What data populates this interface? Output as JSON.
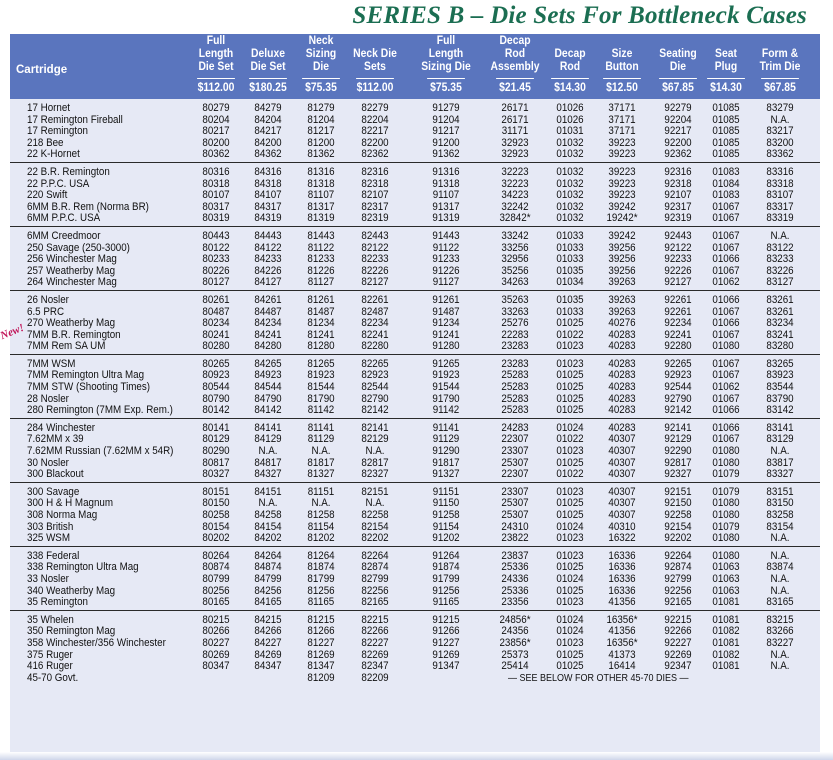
{
  "title": "SERIES B – Die Sets For Bottleneck Cases",
  "new_badge": "New!",
  "headers": [
    {
      "label": "Full Length\nDie Set",
      "price": "$112.00"
    },
    {
      "label": "Deluxe\nDie Set",
      "price": "$180.25"
    },
    {
      "label": "Neck Sizing\nDie",
      "price": "$75.35"
    },
    {
      "label": "Neck Die\nSets",
      "price": "$112.00"
    },
    {
      "label": "Full Length\nSizing Die",
      "price": "$75.35"
    },
    {
      "label": "Decap Rod\nAssembly",
      "price": "$21.45"
    },
    {
      "label": "Decap\nRod",
      "price": "$14.30"
    },
    {
      "label": "Size\nButton",
      "price": "$12.50"
    },
    {
      "label": "Seating\nDie",
      "price": "$67.85"
    },
    {
      "label": "Seat\nPlug",
      "price": "$14.30"
    },
    {
      "label": "Form &\nTrim Die",
      "price": "$67.85"
    }
  ],
  "cartridge_header": "Cartridge",
  "groups": [
    [
      {
        "name": "17 Hornet",
        "v": [
          "80279",
          "84279",
          "81279",
          "82279",
          "91279",
          "26171",
          "01026",
          "37171",
          "92279",
          "01085",
          "83279"
        ]
      },
      {
        "name": "17 Remington Fireball",
        "v": [
          "80204",
          "84204",
          "81204",
          "82204",
          "91204",
          "26171",
          "01026",
          "37171",
          "92204",
          "01085",
          "N.A."
        ]
      },
      {
        "name": "17 Remington",
        "v": [
          "80217",
          "84217",
          "81217",
          "82217",
          "91217",
          "31171",
          "01031",
          "37171",
          "92217",
          "01085",
          "83217"
        ]
      },
      {
        "name": "218 Bee",
        "v": [
          "80200",
          "84200",
          "81200",
          "82200",
          "91200",
          "32923",
          "01032",
          "39223",
          "92200",
          "01085",
          "83200"
        ]
      },
      {
        "name": "22 K-Hornet",
        "v": [
          "80362",
          "84362",
          "81362",
          "82362",
          "91362",
          "32923",
          "01032",
          "39223",
          "92362",
          "01085",
          "83362"
        ]
      }
    ],
    [
      {
        "name": "22 B.R. Remington",
        "v": [
          "80316",
          "84316",
          "81316",
          "82316",
          "91316",
          "32223",
          "01032",
          "39223",
          "92316",
          "01083",
          "83316"
        ]
      },
      {
        "name": "22 P.P.C. USA",
        "v": [
          "80318",
          "84318",
          "81318",
          "82318",
          "91318",
          "32223",
          "01032",
          "39223",
          "92318",
          "01084",
          "83318"
        ]
      },
      {
        "name": "220 Swift",
        "v": [
          "80107",
          "84107",
          "81107",
          "82107",
          "91107",
          "34223",
          "01032",
          "39223",
          "92107",
          "01083",
          "83107"
        ]
      },
      {
        "name": "6MM B.R. Rem (Norma BR)",
        "v": [
          "80317",
          "84317",
          "81317",
          "82317",
          "91317",
          "32242",
          "01032",
          "39242",
          "92317",
          "01067",
          "83317"
        ]
      },
      {
        "name": "6MM P.P.C. USA",
        "v": [
          "80319",
          "84319",
          "81319",
          "82319",
          "91319",
          "32842*",
          "01032",
          "19242*",
          "92319",
          "01067",
          "83319"
        ]
      }
    ],
    [
      {
        "name": "6MM Creedmoor",
        "v": [
          "80443",
          "84443",
          "81443",
          "82443",
          "91443",
          "33242",
          "01033",
          "39242",
          "92443",
          "01067",
          "N.A."
        ]
      },
      {
        "name": "250 Savage (250-3000)",
        "v": [
          "80122",
          "84122",
          "81122",
          "82122",
          "91122",
          "33256",
          "01033",
          "39256",
          "92122",
          "01067",
          "83122"
        ]
      },
      {
        "name": "256 Winchester Mag",
        "v": [
          "80233",
          "84233",
          "81233",
          "82233",
          "91233",
          "32956",
          "01033",
          "39256",
          "92233",
          "01066",
          "83233"
        ]
      },
      {
        "name": "257 Weatherby Mag",
        "v": [
          "80226",
          "84226",
          "81226",
          "82226",
          "91226",
          "35256",
          "01035",
          "39256",
          "92226",
          "01067",
          "83226"
        ]
      },
      {
        "name": "264 Winchester Mag",
        "v": [
          "80127",
          "84127",
          "81127",
          "82127",
          "91127",
          "34263",
          "01034",
          "39263",
          "92127",
          "01062",
          "83127"
        ]
      }
    ],
    [
      {
        "name": "26 Nosler",
        "v": [
          "80261",
          "84261",
          "81261",
          "82261",
          "91261",
          "35263",
          "01035",
          "39263",
          "92261",
          "01066",
          "83261"
        ]
      },
      {
        "name": "6.5 PRC",
        "v": [
          "80487",
          "84487",
          "81487",
          "82487",
          "91487",
          "33263",
          "01033",
          "39263",
          "92261",
          "01067",
          "83261"
        ]
      },
      {
        "name": "270 Weatherby Mag",
        "v": [
          "80234",
          "84234",
          "81234",
          "82234",
          "91234",
          "25276",
          "01025",
          "40276",
          "92234",
          "01066",
          "83234"
        ]
      },
      {
        "name": "7MM B.R. Remington",
        "v": [
          "80241",
          "84241",
          "81241",
          "82241",
          "91241",
          "22283",
          "01022",
          "40283",
          "92241",
          "01067",
          "83241"
        ]
      },
      {
        "name": "7MM Rem SA UM",
        "v": [
          "80280",
          "84280",
          "81280",
          "82280",
          "91280",
          "23283",
          "01023",
          "40283",
          "92280",
          "01080",
          "83280"
        ]
      }
    ],
    [
      {
        "name": "7MM WSM",
        "v": [
          "80265",
          "84265",
          "81265",
          "82265",
          "91265",
          "23283",
          "01023",
          "40283",
          "92265",
          "01067",
          "83265"
        ]
      },
      {
        "name": "7MM Remington Ultra Mag",
        "v": [
          "80923",
          "84923",
          "81923",
          "82923",
          "91923",
          "25283",
          "01025",
          "40283",
          "92923",
          "01067",
          "83923"
        ]
      },
      {
        "name": "7MM STW (Shooting Times)",
        "v": [
          "80544",
          "84544",
          "81544",
          "82544",
          "91544",
          "25283",
          "01025",
          "40283",
          "92544",
          "01062",
          "83544"
        ]
      },
      {
        "name": "28 Nosler",
        "v": [
          "80790",
          "84790",
          "81790",
          "82790",
          "91790",
          "25283",
          "01025",
          "40283",
          "92790",
          "01067",
          "83790"
        ]
      },
      {
        "name": "280 Remington (7MM Exp. Rem.)",
        "v": [
          "80142",
          "84142",
          "81142",
          "82142",
          "91142",
          "25283",
          "01025",
          "40283",
          "92142",
          "01066",
          "83142"
        ]
      }
    ],
    [
      {
        "name": "284 Winchester",
        "v": [
          "80141",
          "84141",
          "81141",
          "82141",
          "91141",
          "24283",
          "01024",
          "40283",
          "92141",
          "01066",
          "83141"
        ]
      },
      {
        "name": "7.62MM x 39",
        "v": [
          "80129",
          "84129",
          "81129",
          "82129",
          "91129",
          "22307",
          "01022",
          "40307",
          "92129",
          "01067",
          "83129"
        ]
      },
      {
        "name": "7.62MM Russian (7.62MM x 54R)",
        "v": [
          "80290",
          "N.A.",
          "N.A.",
          "N.A.",
          "91290",
          "23307",
          "01023",
          "40307",
          "92290",
          "01080",
          "N.A."
        ]
      },
      {
        "name": "30 Nosler",
        "v": [
          "80817",
          "84817",
          "81817",
          "82817",
          "91817",
          "25307",
          "01025",
          "40307",
          "92817",
          "01080",
          "83817"
        ]
      },
      {
        "name": "300 Blackout",
        "v": [
          "80327",
          "84327",
          "81327",
          "82327",
          "91327",
          "22307",
          "01022",
          "40307",
          "92327",
          "01079",
          "83327"
        ]
      }
    ],
    [
      {
        "name": "300 Savage",
        "v": [
          "80151",
          "84151",
          "81151",
          "82151",
          "91151",
          "23307",
          "01023",
          "40307",
          "92151",
          "01079",
          "83151"
        ]
      },
      {
        "name": "300 H & H Magnum",
        "v": [
          "80150",
          "N.A.",
          "N.A.",
          "N.A.",
          "91150",
          "25307",
          "01025",
          "40307",
          "92150",
          "01080",
          "83150"
        ]
      },
      {
        "name": "308 Norma Mag",
        "v": [
          "80258",
          "84258",
          "81258",
          "82258",
          "91258",
          "25307",
          "01025",
          "40307",
          "92258",
          "01080",
          "83258"
        ]
      },
      {
        "name": "303 British",
        "v": [
          "80154",
          "84154",
          "81154",
          "82154",
          "91154",
          "24310",
          "01024",
          "40310",
          "92154",
          "01079",
          "83154"
        ]
      },
      {
        "name": "325 WSM",
        "v": [
          "80202",
          "84202",
          "81202",
          "82202",
          "91202",
          "23822",
          "01023",
          "16322",
          "92202",
          "01080",
          "N.A."
        ]
      }
    ],
    [
      {
        "name": "338 Federal",
        "v": [
          "80264",
          "84264",
          "81264",
          "82264",
          "91264",
          "23837",
          "01023",
          "16336",
          "92264",
          "01080",
          "N.A."
        ]
      },
      {
        "name": "338 Remington Ultra Mag",
        "v": [
          "80874",
          "84874",
          "81874",
          "82874",
          "91874",
          "25336",
          "01025",
          "16336",
          "92874",
          "01063",
          "83874"
        ]
      },
      {
        "name": "33 Nosler",
        "v": [
          "80799",
          "84799",
          "81799",
          "82799",
          "91799",
          "24336",
          "01024",
          "16336",
          "92799",
          "01063",
          "N.A."
        ]
      },
      {
        "name": "340 Weatherby Mag",
        "v": [
          "80256",
          "84256",
          "81256",
          "82256",
          "91256",
          "25336",
          "01025",
          "16336",
          "92256",
          "01063",
          "N.A."
        ]
      },
      {
        "name": "35 Remington",
        "v": [
          "80165",
          "84165",
          "81165",
          "82165",
          "91165",
          "23356",
          "01023",
          "41356",
          "92165",
          "01081",
          "83165"
        ]
      }
    ],
    [
      {
        "name": "35 Whelen",
        "v": [
          "80215",
          "84215",
          "81215",
          "82215",
          "91215",
          "24856*",
          "01024",
          "16356*",
          "92215",
          "01081",
          "83215"
        ]
      },
      {
        "name": "350 Remington Mag",
        "v": [
          "80266",
          "84266",
          "81266",
          "82266",
          "91266",
          "24356",
          "01024",
          "41356",
          "92266",
          "01082",
          "83266"
        ]
      },
      {
        "name": "358 Winchester/356 Winchester",
        "v": [
          "80227",
          "84227",
          "81227",
          "82227",
          "91227",
          "23856*",
          "01023",
          "16356*",
          "92227",
          "01081",
          "83227"
        ]
      },
      {
        "name": "375 Ruger",
        "v": [
          "80269",
          "84269",
          "81269",
          "82269",
          "91269",
          "25373",
          "01025",
          "41373",
          "92269",
          "01082",
          "N.A."
        ]
      },
      {
        "name": "416 Ruger",
        "v": [
          "80347",
          "84347",
          "81347",
          "82347",
          "91347",
          "25414",
          "01025",
          "16414",
          "92347",
          "01081",
          "N.A."
        ]
      },
      {
        "name": "45-70 Govt.",
        "v": [
          "",
          "",
          "81209",
          "82209",
          "",
          "",
          "",
          "",
          "",
          "",
          ""
        ],
        "note": "— SEE BELOW FOR OTHER 45-70 DIES —"
      }
    ]
  ]
}
